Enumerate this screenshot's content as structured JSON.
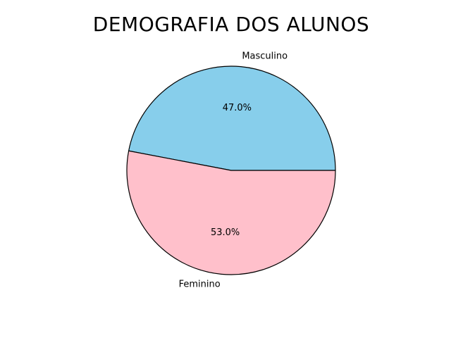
{
  "chart_data": {
    "type": "pie",
    "title": "DEMOGRAFIA DOS ALUNOS",
    "start_angle_deg": 0,
    "direction": "counterclockwise",
    "slices": [
      {
        "label": "Masculino",
        "value": 47.0,
        "pct_label": "47.0%",
        "color": "#87CEEB"
      },
      {
        "label": "Feminino",
        "value": 53.0,
        "pct_label": "53.0%",
        "color": "#FFC0CB"
      }
    ],
    "edge_color": "#000000"
  }
}
